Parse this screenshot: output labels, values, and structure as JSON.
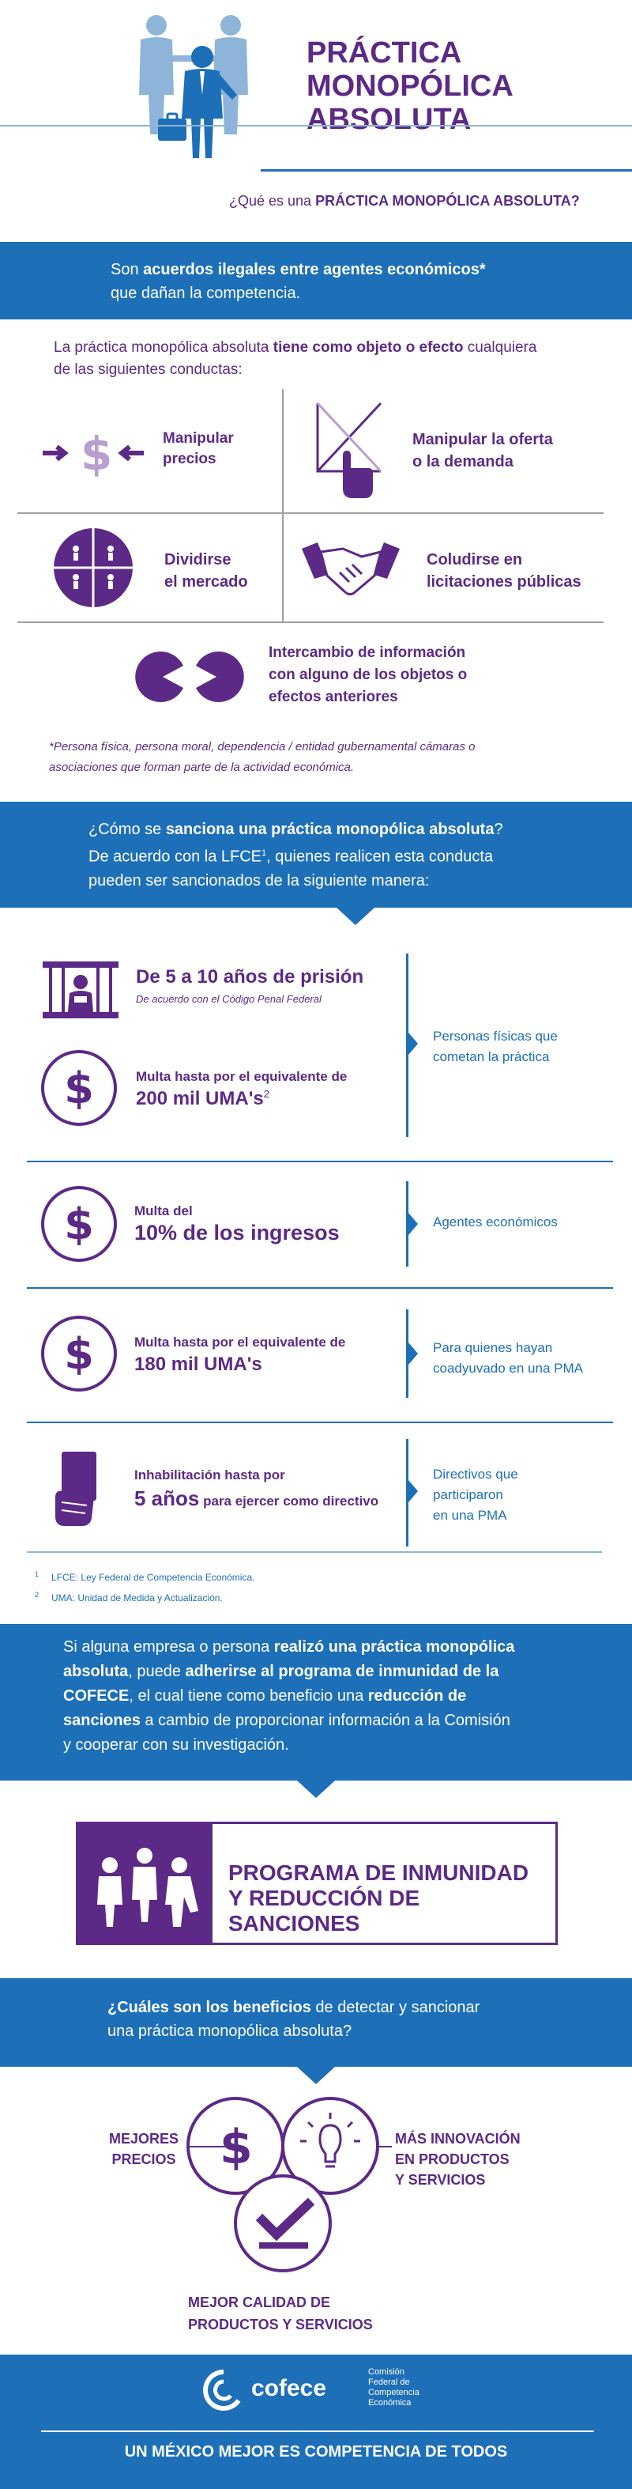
{
  "header": {
    "title_line1": "PRÁCTICA",
    "title_line2": "MONOPÓLICA",
    "title_line3": "ABSOLUTA",
    "question_prefix": "¿Qué es una ",
    "question_bold": "PRÁCTICA MONOPÓLICA ABSOLUTA?"
  },
  "definition": {
    "line1_prefix": "Son ",
    "line1_bold": "acuerdos ilegales entre agentes económicos*",
    "line2": "que dañan la competencia."
  },
  "conducts_intro": {
    "prefix": "La práctica monopólica absoluta ",
    "bold": "tiene como objeto o efecto",
    "suffix": " cualquiera",
    "line2": "de las siguientes conductas:"
  },
  "conducts": [
    {
      "label1": "Manipular",
      "label2": "precios",
      "icon": "price-arrows-icon"
    },
    {
      "label1": "Manipular la oferta",
      "label2": "o la demanda",
      "icon": "supply-demand-hand-icon"
    },
    {
      "label1": "Dividirse",
      "label2": "el mercado",
      "icon": "divided-market-icon"
    },
    {
      "label1": "Coludirse en",
      "label2": "licitaciones públicas",
      "icon": "handshake-icon"
    },
    {
      "label1": "Intercambio de información",
      "label2": "con alguno de los objetos o",
      "label3": "efectos anteriores",
      "icon": "info-exchange-icon"
    }
  ],
  "footnote_star_line1": "*Persona física, persona moral, dependencia / entidad gubernamental cámaras o",
  "footnote_star_line2": "asociaciones que forman parte de la actividad económica.",
  "sanction_section": {
    "line1_prefix": "¿Cómo se ",
    "line1_bold": "sanciona una práctica monopólica absoluta",
    "line1_suffix": "?",
    "line2_prefix": "De acuerdo con la LFCE",
    "line2_sup": "1",
    "line2_suffix": ", quienes realicen esta conducta",
    "line3": "pueden ser sancionados de la siguiente manera:"
  },
  "sanctions": {
    "prison_title": "De 5 a 10 años de prisión",
    "prison_sub": "De acuerdo con el Código Penal Federal",
    "fine1_line1": "Multa hasta por el equivalente de",
    "fine1_line2": "200 mil UMA's",
    "fine1_sup": "2",
    "target1_line1": "Personas físicas que",
    "target1_line2": "cometan la práctica",
    "fine2_line1": "Multa del",
    "fine2_line2": "10% de los ingresos",
    "target2": "Agentes económicos",
    "fine3_line1": "Multa hasta por el equivalente de",
    "fine3_line2": "180 mil UMA's",
    "target3_line1": "Para quienes hayan",
    "target3_line2": "coadyuvado en una PMA",
    "disq_line1": "Inhabilitación hasta por",
    "disq_big": "5 años",
    "disq_suffix": " para ejercer como directivo",
    "target4_line1": "Directivos que",
    "target4_line2": "participaron",
    "target4_line3": "en una PMA",
    "dollar_symbol": "$"
  },
  "footnotes": [
    {
      "num": "1",
      "text": "LFCE: Ley Federal de Competencia Económica."
    },
    {
      "num": "2",
      "text": "UMA: Unidad de Medida y Actualización."
    }
  ],
  "immunity_text": {
    "l1_prefix": "Si alguna empresa o persona ",
    "l1_bold": "realizó una práctica monopólica",
    "l2_bold1": "absoluta",
    "l2_mid": ", puede ",
    "l2_bold2": "adherirse al programa de inmunidad de la",
    "l3_bold": "COFECE",
    "l3_mid": ", el cual tiene como beneficio una ",
    "l3_bold2": "reducción de",
    "l4_bold": "sanciones",
    "l4_suffix": " a cambio de proporcionar información a la Comisión",
    "l5": "y cooperar con su investigación."
  },
  "program": {
    "line1": "PROGRAMA DE INMUNIDAD",
    "line2": "Y REDUCCIÓN DE SANCIONES"
  },
  "benefits_question": {
    "bold": "¿Cuáles son los beneficios",
    "suffix": " de detectar y sancionar",
    "line2": "una práctica monopólica absoluta?"
  },
  "benefits": {
    "b1_line1": "MEJORES",
    "b1_line2": "PRECIOS",
    "b2_line1": "MÁS INNOVACIÓN",
    "b2_line2": "EN PRODUCTOS",
    "b2_line3": "Y SERVICIOS",
    "b3_line1": "MEJOR CALIDAD DE",
    "b3_line2": "PRODUCTOS Y SERVICIOS"
  },
  "footer": {
    "logo_word": "cofece",
    "org_line1": "Comisión",
    "org_line2": "Federal de",
    "org_line3": "Competencia",
    "org_line4": "Económica",
    "slogan": "UN MÉXICO MEJOR ES COMPETENCIA DE TODOS"
  },
  "colors": {
    "purple": "#5c2a86",
    "blue": "#1d6fb8",
    "light_blue": "#8eb5d9",
    "lavender": "#b79fd0"
  }
}
